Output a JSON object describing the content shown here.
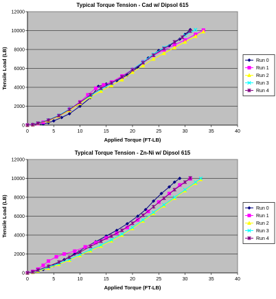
{
  "chart_data": [
    {
      "type": "line",
      "title": "Typical Torque Tension - Cad w/ Dipsol 615",
      "xlabel": "Applied Torque (FT-LB)",
      "ylabel": "Tensile Load (LB)",
      "xlim": [
        0,
        40
      ],
      "ylim": [
        0,
        12000
      ],
      "xticks": [
        "0",
        "5",
        "10",
        "15",
        "20",
        "25",
        "30",
        "35",
        "40"
      ],
      "yticks": [
        "0",
        "2000",
        "4000",
        "6000",
        "8000",
        "10000",
        "12000"
      ],
      "grid": "horizontal",
      "legend": "right",
      "series": [
        {
          "name": "Run 0",
          "color": "#000080",
          "marker": "diamond",
          "x": [
            0,
            1,
            3,
            4,
            5,
            6.5,
            8,
            10,
            12,
            13.5,
            15,
            17,
            19,
            21,
            23,
            25,
            27,
            29,
            30,
            31
          ],
          "y": [
            0,
            40,
            120,
            250,
            450,
            800,
            1200,
            2000,
            2900,
            4100,
            4350,
            4700,
            5300,
            6100,
            7100,
            7900,
            8400,
            9100,
            9600,
            10100
          ]
        },
        {
          "name": "Run 1",
          "color": "#ff00ff",
          "marker": "square",
          "x": [
            0,
            1,
            2,
            3,
            4,
            6,
            8,
            10,
            11.5,
            13,
            14.5,
            16,
            18,
            20,
            22,
            24,
            26,
            28,
            30,
            32,
            33.5
          ],
          "y": [
            0,
            30,
            150,
            300,
            500,
            1000,
            1700,
            2450,
            3200,
            3900,
            4250,
            4550,
            5200,
            5900,
            6700,
            7400,
            7950,
            8500,
            9000,
            9600,
            10050
          ]
        },
        {
          "name": "Run 2",
          "color": "#ffff00",
          "marker": "triangle",
          "x": [
            0,
            1,
            2,
            4,
            6,
            8,
            10,
            12,
            14,
            16,
            18,
            20,
            22,
            24,
            26,
            28,
            30,
            32,
            33.5
          ],
          "y": [
            0,
            50,
            200,
            450,
            950,
            1550,
            2300,
            3000,
            3600,
            4200,
            4800,
            5600,
            6300,
            7000,
            7600,
            8200,
            8800,
            9400,
            9900
          ]
        },
        {
          "name": "Run 3",
          "color": "#00ffff",
          "marker": "x",
          "x": [
            0,
            1,
            2,
            4,
            6,
            8,
            10,
            12,
            14,
            16,
            18,
            20,
            22,
            24,
            26,
            28,
            30,
            32
          ],
          "y": [
            0,
            60,
            220,
            550,
            1050,
            1700,
            2400,
            3100,
            3800,
            4400,
            5100,
            5900,
            6700,
            7500,
            8200,
            8800,
            9500,
            10100
          ]
        },
        {
          "name": "Run 4",
          "color": "#800080",
          "marker": "star",
          "x": [
            0,
            1,
            2,
            4,
            6,
            8,
            10,
            12,
            14,
            16,
            18,
            20,
            22,
            24,
            26,
            28,
            29.5,
            31
          ],
          "y": [
            0,
            50,
            200,
            520,
            1000,
            1650,
            2400,
            3200,
            3900,
            4450,
            5100,
            5850,
            6600,
            7400,
            8100,
            8800,
            9300,
            9950
          ]
        }
      ]
    },
    {
      "type": "line",
      "title": "Typical Torque Tension - Zn-Ni w/ Dipsol 615",
      "xlabel": "Applied Torque (FT-LB)",
      "ylabel": "Tensile Load (LB)",
      "xlim": [
        0,
        40
      ],
      "ylim": [
        0,
        12000
      ],
      "xticks": [
        "0",
        "5",
        "10",
        "15",
        "20",
        "25",
        "30",
        "35",
        "40"
      ],
      "yticks": [
        "0",
        "2000",
        "4000",
        "6000",
        "8000",
        "10000",
        "12000"
      ],
      "grid": "horizontal",
      "legend": "right",
      "series": [
        {
          "name": "Run 0",
          "color": "#000080",
          "marker": "diamond",
          "x": [
            0,
            1,
            3,
            5,
            7,
            9,
            11,
            13,
            15,
            17,
            19,
            21,
            22.5,
            24,
            25.5,
            27,
            28,
            29
          ],
          "y": [
            0,
            100,
            350,
            800,
            1400,
            2000,
            2700,
            3300,
            3900,
            4500,
            5200,
            6000,
            6700,
            7600,
            8400,
            9100,
            9600,
            10000
          ]
        },
        {
          "name": "Run 1",
          "color": "#ff00ff",
          "marker": "square",
          "x": [
            0,
            1,
            2,
            3,
            4,
            5.5,
            7,
            9,
            11,
            13,
            15,
            17,
            19,
            21,
            23,
            25,
            27,
            29,
            31
          ],
          "y": [
            0,
            150,
            400,
            800,
            1250,
            1700,
            2000,
            2300,
            2750,
            3200,
            3700,
            4200,
            4800,
            5600,
            6500,
            7500,
            8400,
            9300,
            9950
          ]
        },
        {
          "name": "Run 2",
          "color": "#ffff00",
          "marker": "triangle",
          "x": [
            0,
            1,
            2,
            4,
            6,
            8,
            10,
            12,
            14,
            16,
            18,
            20,
            22,
            24,
            26,
            28,
            30,
            32,
            33
          ],
          "y": [
            0,
            60,
            200,
            500,
            900,
            1350,
            1850,
            2350,
            2850,
            3400,
            4000,
            4700,
            5500,
            6300,
            7100,
            7900,
            8700,
            9500,
            9900
          ]
        },
        {
          "name": "Run 3",
          "color": "#00ffff",
          "marker": "x",
          "x": [
            0,
            1,
            2,
            4,
            6,
            8,
            10,
            12,
            14,
            16,
            18,
            20,
            22,
            24,
            26,
            28,
            30,
            32,
            33
          ],
          "y": [
            0,
            80,
            250,
            600,
            1000,
            1450,
            1950,
            2450,
            2950,
            3500,
            4100,
            4800,
            5600,
            6400,
            7200,
            8000,
            8800,
            9600,
            10000
          ]
        },
        {
          "name": "Run 4",
          "color": "#800080",
          "marker": "star",
          "x": [
            0,
            1,
            2,
            4,
            6,
            8,
            10,
            12,
            14,
            16,
            18,
            20,
            22,
            24,
            26,
            28,
            30,
            31
          ],
          "y": [
            0,
            100,
            300,
            700,
            1150,
            1650,
            2200,
            2800,
            3350,
            3900,
            4500,
            5250,
            6100,
            7000,
            7900,
            8800,
            9600,
            10050
          ]
        }
      ]
    }
  ]
}
